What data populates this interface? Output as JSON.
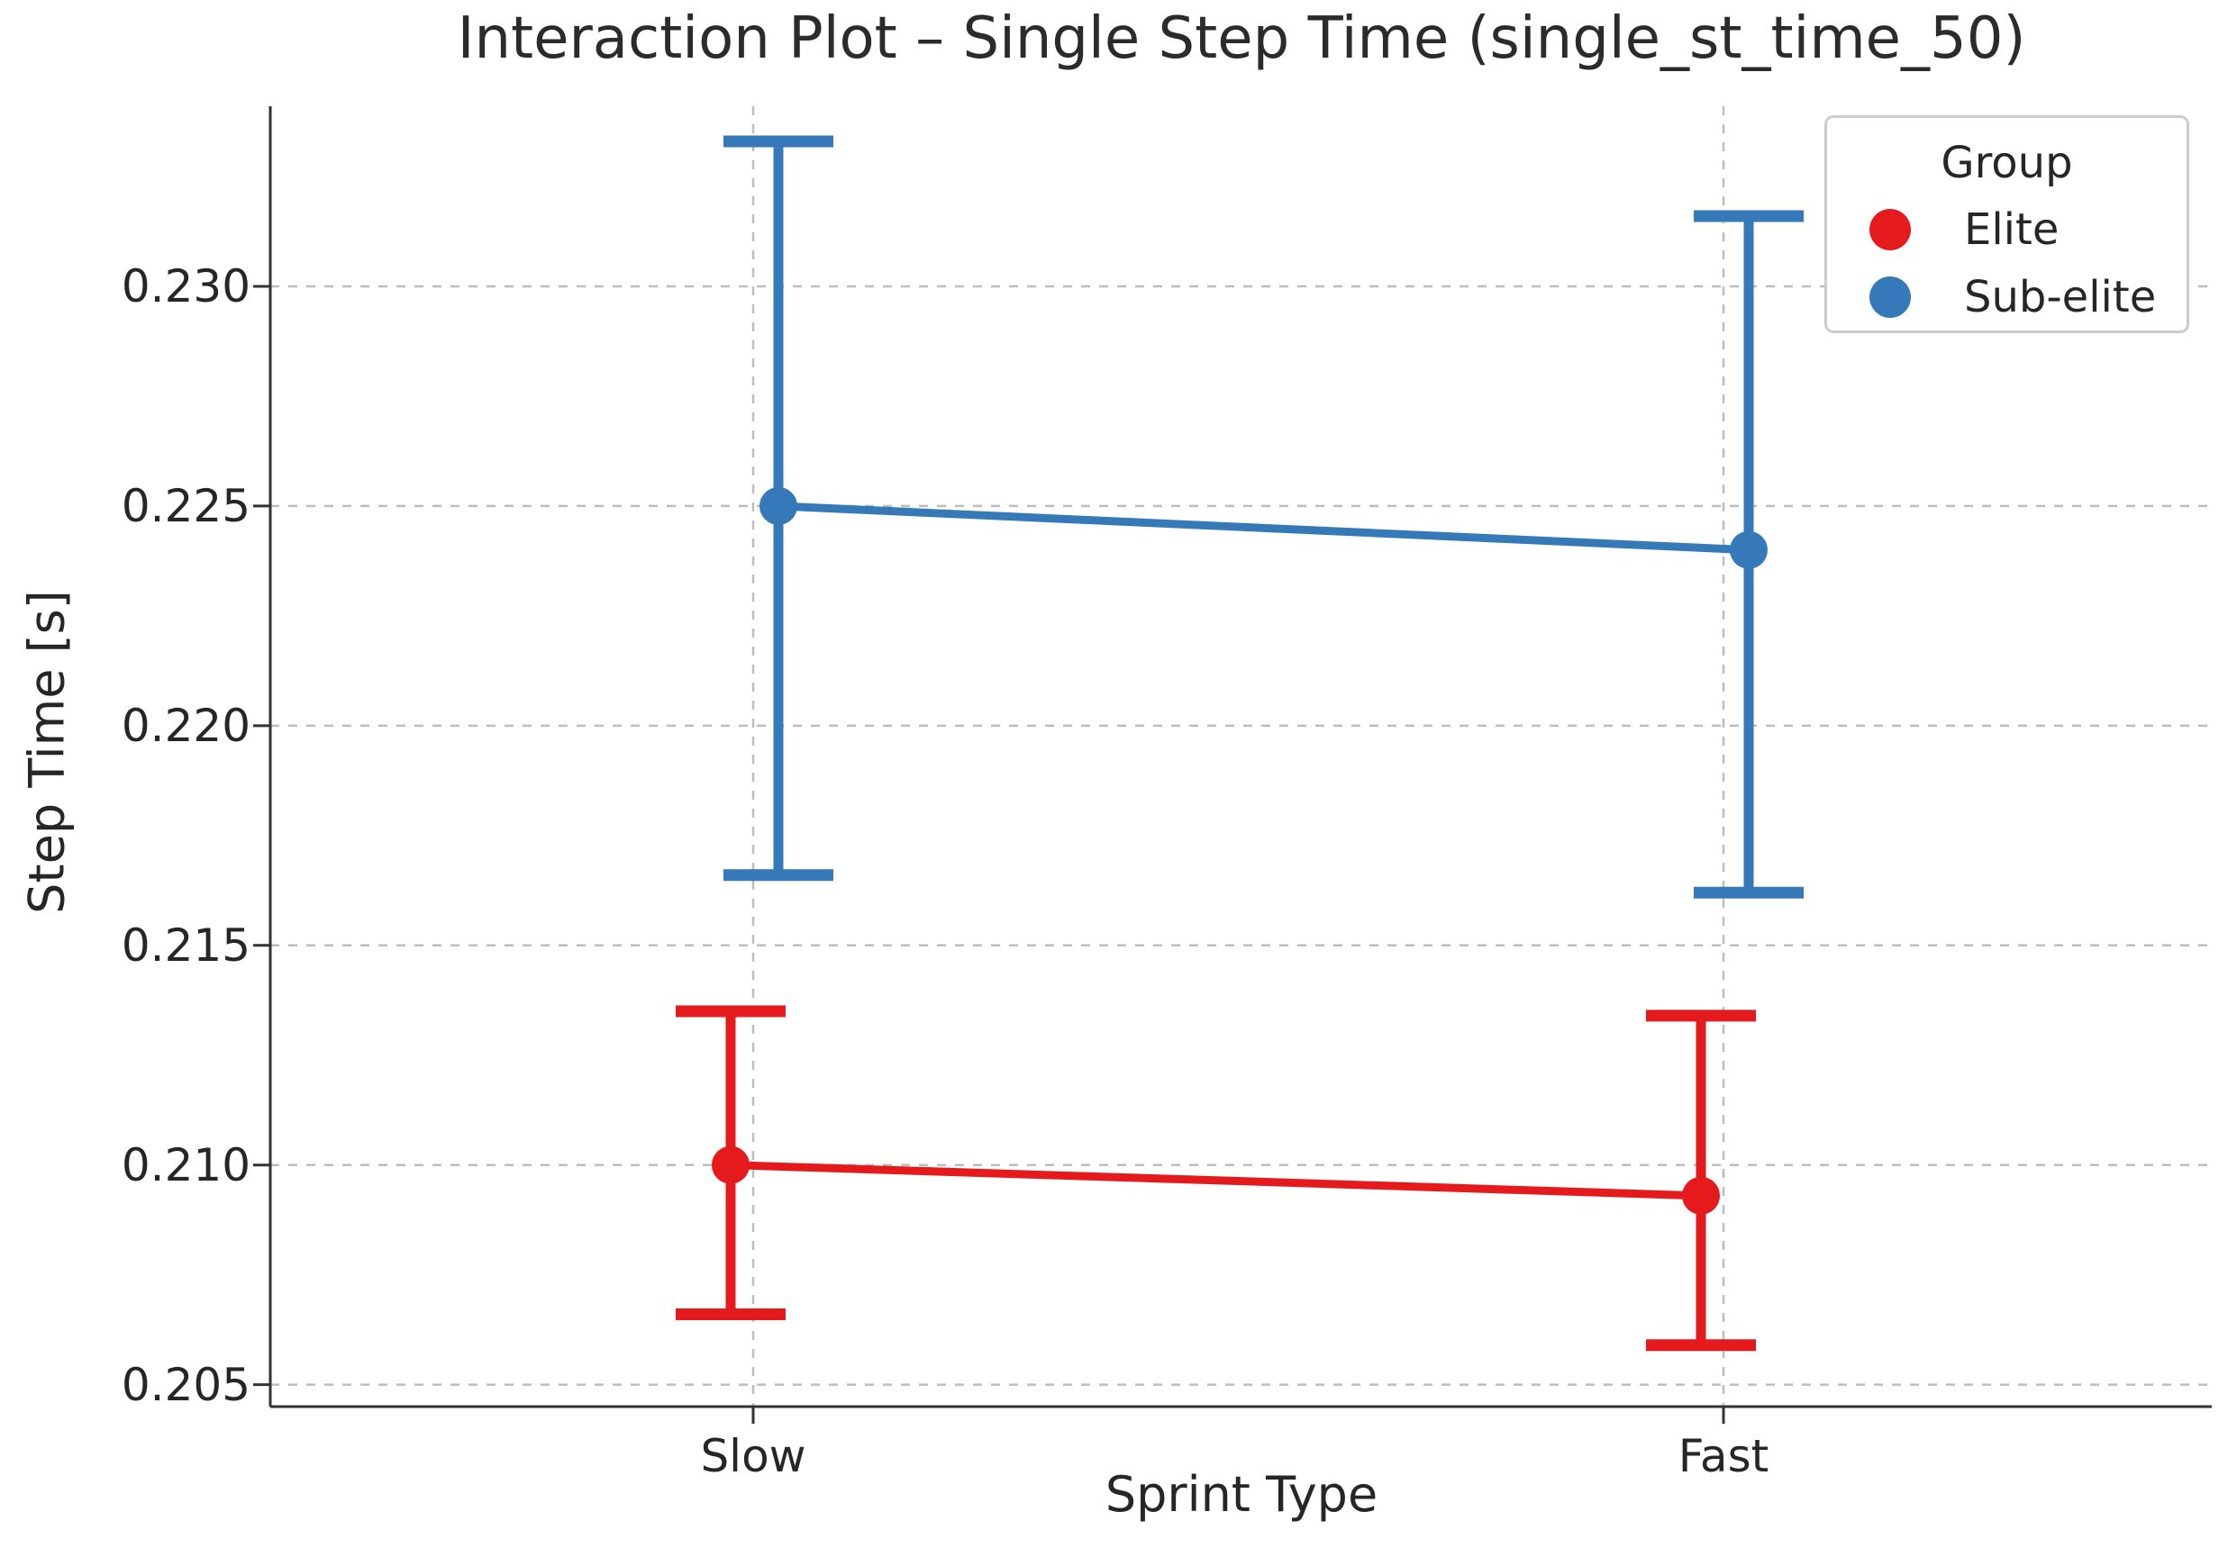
{
  "figure": {
    "background": "#ffffff"
  },
  "chart_data": {
    "type": "line",
    "subtype": "interaction-point-plot-with-error-bars",
    "title": "Interaction Plot – Single Step Time (single_st_time_50)",
    "xlabel": "Sprint Type",
    "ylabel": "Step Time [s]",
    "categories": [
      "Slow",
      "Fast"
    ],
    "ytick_values": [
      0.205,
      0.21,
      0.215,
      0.22,
      0.225,
      0.23
    ],
    "ytick_labels": [
      "0.205",
      "0.210",
      "0.215",
      "0.220",
      "0.225",
      "0.230"
    ],
    "ylim": [
      0.2045,
      0.2341
    ],
    "grid": {
      "horizontal": true,
      "vertical": true,
      "style": "dashed",
      "color": "#bdbdbd"
    },
    "legend": {
      "title": "Group",
      "position": "upper-right",
      "entries": [
        "Elite",
        "Sub-elite"
      ]
    },
    "series": [
      {
        "name": "Elite",
        "color": "#e41a1c",
        "means": [
          0.21,
          0.2093
        ],
        "err_low": [
          0.2066,
          0.2059
        ],
        "err_high": [
          0.2135,
          0.2134
        ]
      },
      {
        "name": "Sub-elite",
        "color": "#3579b8",
        "means": [
          0.225,
          0.224
        ],
        "err_low": [
          0.2166,
          0.2162
        ],
        "err_high": [
          0.2333,
          0.2316
        ]
      }
    ]
  },
  "colors": {
    "spine": "#333333",
    "text": "#262626",
    "grid": "#bdbdbd",
    "legend_border": "#cccccc",
    "background": "#ffffff"
  }
}
